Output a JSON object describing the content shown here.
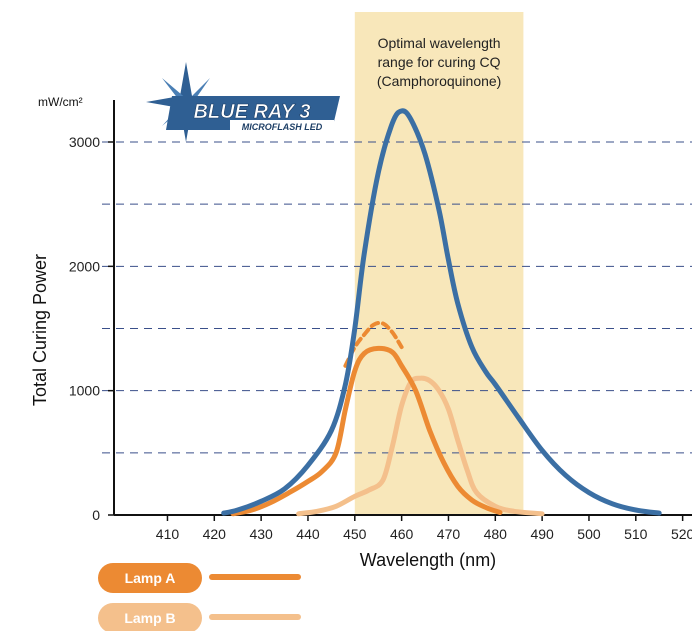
{
  "chart_data": {
    "type": "line",
    "title": "",
    "xlabel": "Wavelength (nm)",
    "ylabel": "Total Curing Power",
    "yunit": "mW/cm²",
    "xlim": [
      402,
      522
    ],
    "ylim": [
      0,
      3150
    ],
    "xticks": [
      410,
      420,
      430,
      440,
      450,
      460,
      470,
      480,
      490,
      500,
      510,
      520
    ],
    "yticks_labeled": [
      0,
      1000,
      2000,
      3000
    ],
    "grid_lines_y": [
      500,
      1000,
      1500,
      2000,
      2500,
      3000
    ],
    "grid": "horizontal dashed",
    "highlight_band": {
      "x_range": [
        450,
        486
      ],
      "label_lines": [
        "Optimal wavelength",
        "range for curing CQ",
        "(Camphoroquinone)"
      ],
      "color": "#f8e7ba"
    },
    "series": [
      {
        "name": "BLUE RAY 3",
        "color": "#3b6fa4",
        "points": [
          [
            422,
            15
          ],
          [
            425,
            40
          ],
          [
            430,
            110
          ],
          [
            435,
            210
          ],
          [
            440,
            400
          ],
          [
            445,
            680
          ],
          [
            448,
            1050
          ],
          [
            450,
            1500
          ],
          [
            452,
            2100
          ],
          [
            455,
            2750
          ],
          [
            458,
            3150
          ],
          [
            460,
            3250
          ],
          [
            462,
            3180
          ],
          [
            465,
            2900
          ],
          [
            468,
            2450
          ],
          [
            470,
            2050
          ],
          [
            472,
            1700
          ],
          [
            475,
            1350
          ],
          [
            478,
            1150
          ],
          [
            480,
            1050
          ],
          [
            485,
            780
          ],
          [
            490,
            520
          ],
          [
            495,
            320
          ],
          [
            500,
            180
          ],
          [
            505,
            90
          ],
          [
            510,
            40
          ],
          [
            515,
            15
          ]
        ]
      },
      {
        "name": "Lamp A",
        "color": "#ec8a33",
        "points": [
          [
            424,
            10
          ],
          [
            428,
            40
          ],
          [
            432,
            100
          ],
          [
            436,
            180
          ],
          [
            440,
            270
          ],
          [
            443,
            350
          ],
          [
            446,
            500
          ],
          [
            448,
            850
          ],
          [
            450,
            1160
          ],
          [
            452,
            1300
          ],
          [
            455,
            1340
          ],
          [
            458,
            1310
          ],
          [
            460,
            1200
          ],
          [
            463,
            1000
          ],
          [
            466,
            680
          ],
          [
            469,
            420
          ],
          [
            472,
            230
          ],
          [
            475,
            120
          ],
          [
            478,
            60
          ],
          [
            481,
            20
          ]
        ],
        "dashed_peak_points": [
          [
            448,
            1200
          ],
          [
            450,
            1350
          ],
          [
            452,
            1450
          ],
          [
            454,
            1530
          ],
          [
            456,
            1540
          ],
          [
            458,
            1470
          ],
          [
            460,
            1350
          ]
        ]
      },
      {
        "name": "Lamp B",
        "color": "#f4c08c",
        "points": [
          [
            438,
            10
          ],
          [
            442,
            30
          ],
          [
            446,
            70
          ],
          [
            450,
            150
          ],
          [
            453,
            200
          ],
          [
            456,
            280
          ],
          [
            458,
            550
          ],
          [
            460,
            880
          ],
          [
            462,
            1070
          ],
          [
            464,
            1100
          ],
          [
            466,
            1080
          ],
          [
            468,
            1000
          ],
          [
            470,
            850
          ],
          [
            472,
            600
          ],
          [
            474,
            360
          ],
          [
            476,
            180
          ],
          [
            480,
            70
          ],
          [
            484,
            30
          ],
          [
            490,
            10
          ]
        ]
      }
    ]
  },
  "logo": {
    "line1": "BLUE RAY 3",
    "line2": "MICROFLASH LED"
  },
  "legend": [
    {
      "label": "Lamp A",
      "color": "#ec8a33"
    },
    {
      "label": "Lamp B",
      "color": "#f4c08c"
    }
  ]
}
